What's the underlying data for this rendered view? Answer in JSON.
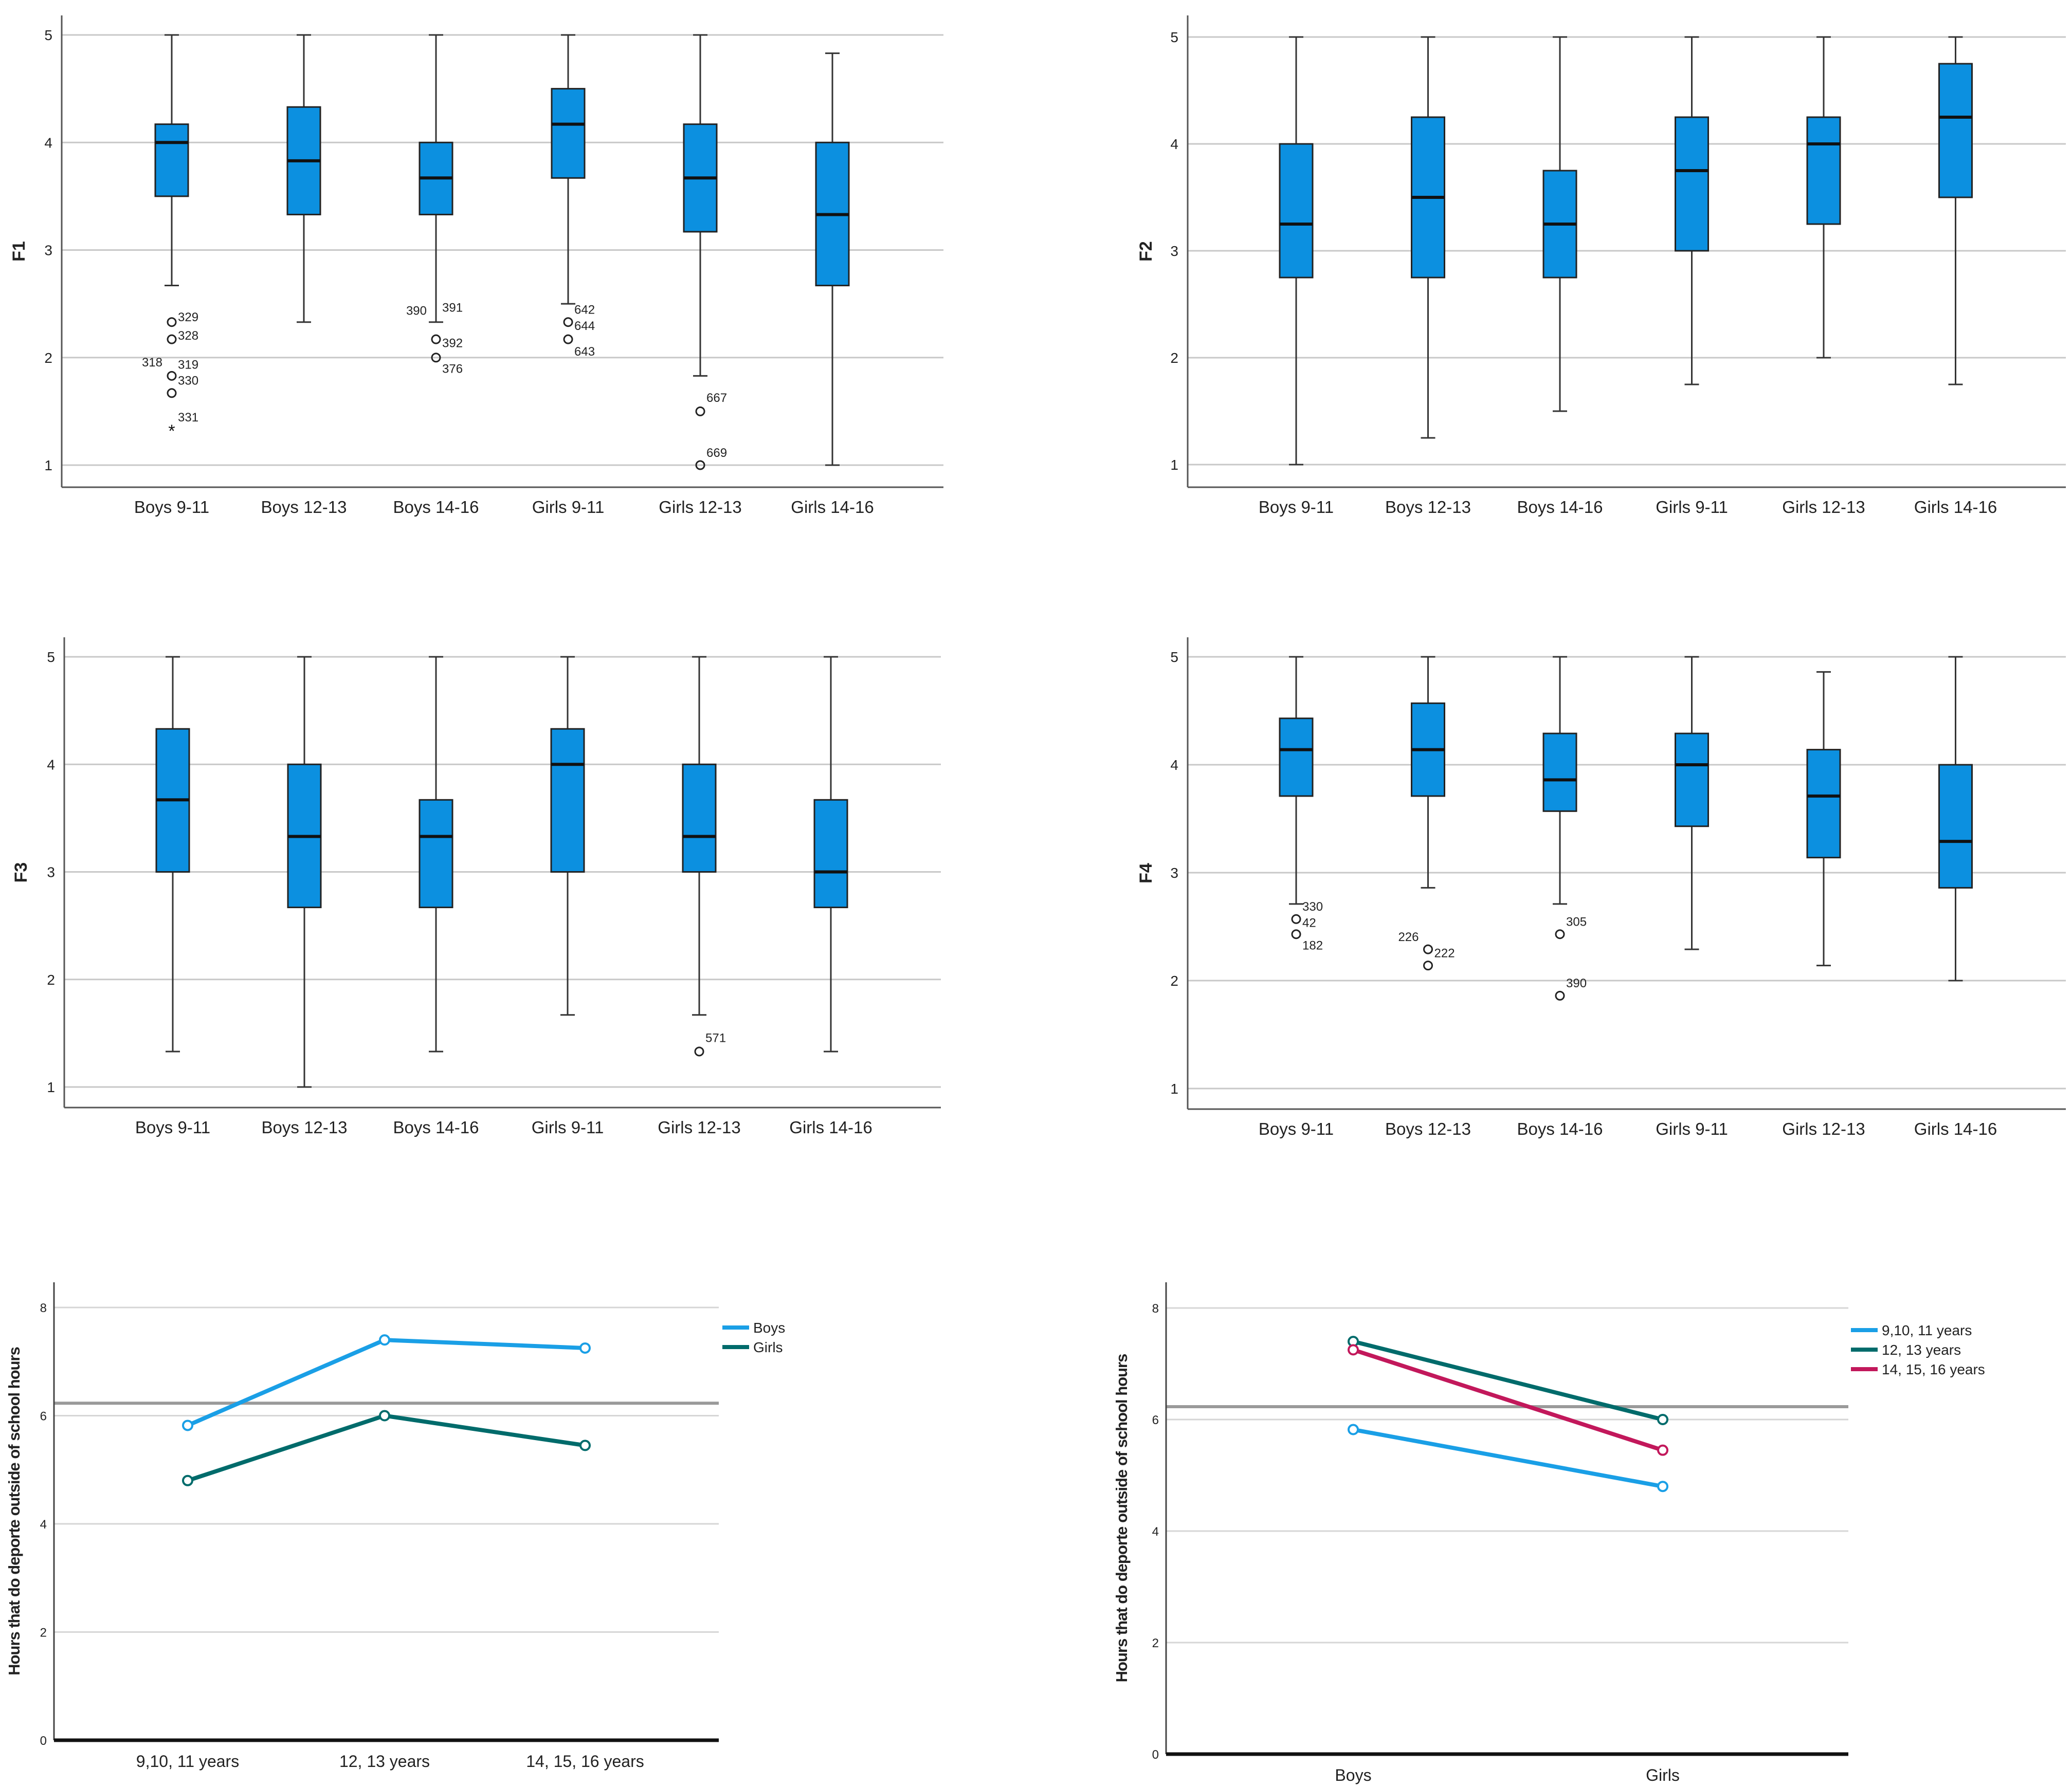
{
  "chart_data": [
    {
      "id": "f1",
      "type": "box",
      "ylabel": "F1",
      "ylim": [
        1,
        5
      ],
      "yticks": [
        1,
        2,
        3,
        4,
        5
      ],
      "categories": [
        "Boys 9-11",
        "Boys 12-13",
        "Boys 14-16",
        "Girls 9-11",
        "Girls 12-13",
        "Girls 14-16"
      ],
      "boxes": [
        {
          "whisker_low": 2.67,
          "q1": 3.5,
          "median": 4.0,
          "q3": 4.17,
          "whisker_high": 5.0
        },
        {
          "whisker_low": 2.33,
          "q1": 3.33,
          "median": 3.83,
          "q3": 4.33,
          "whisker_high": 5.0
        },
        {
          "whisker_low": 2.33,
          "q1": 3.33,
          "median": 3.67,
          "q3": 4.0,
          "whisker_high": 5.0
        },
        {
          "whisker_low": 2.5,
          "q1": 3.67,
          "median": 4.17,
          "q3": 4.5,
          "whisker_high": 5.0
        },
        {
          "whisker_low": 1.83,
          "q1": 3.17,
          "median": 3.67,
          "q3": 4.17,
          "whisker_high": 5.0
        },
        {
          "whisker_low": 1.0,
          "q1": 2.67,
          "median": 3.33,
          "q3": 4.0,
          "whisker_high": 4.83
        }
      ],
      "outliers": [
        {
          "box": 0,
          "y": 2.33,
          "marker": "circle",
          "labels": [
            {
              "text": "328",
              "side": "right",
              "dy": -0.12
            },
            {
              "text": "329",
              "side": "right",
              "dy": 0.05
            }
          ]
        },
        {
          "box": 0,
          "y": 2.17,
          "marker": "circle",
          "labels": []
        },
        {
          "box": 0,
          "y": 1.83,
          "marker": "circle",
          "labels": [
            {
              "text": "318",
              "side": "left",
              "dy": 0.13
            },
            {
              "text": "319",
              "side": "right",
              "dy": 0.11
            },
            {
              "text": "330",
              "side": "right",
              "dy": -0.04
            }
          ]
        },
        {
          "box": 0,
          "y": 1.67,
          "marker": "circle",
          "labels": []
        },
        {
          "box": 0,
          "y": 1.33,
          "marker": "star",
          "labels": [
            {
              "text": "331",
              "side": "right",
              "dy": 0.12
            }
          ]
        },
        {
          "box": 2,
          "y": 2.17,
          "marker": "circle",
          "labels": [
            {
              "text": "390",
              "side": "left",
              "dy": 0.27
            },
            {
              "text": "391",
              "side": "right",
              "dy": 0.3
            },
            {
              "text": "392",
              "side": "right",
              "dy": -0.03
            }
          ]
        },
        {
          "box": 2,
          "y": 2.0,
          "marker": "circle",
          "labels": [
            {
              "text": "376",
              "side": "right",
              "dy": -0.1
            }
          ]
        },
        {
          "box": 3,
          "y": 2.33,
          "marker": "circle",
          "labels": [
            {
              "text": "642",
              "side": "right",
              "dy": 0.12
            },
            {
              "text": "644",
              "side": "right",
              "dy": -0.03
            }
          ]
        },
        {
          "box": 3,
          "y": 2.17,
          "marker": "circle",
          "labels": [
            {
              "text": "643",
              "side": "right",
              "dy": -0.11
            }
          ]
        },
        {
          "box": 4,
          "y": 1.5,
          "marker": "circle",
          "labels": [
            {
              "text": "667",
              "side": "right",
              "dy": 0.13
            }
          ]
        },
        {
          "box": 4,
          "y": 1.0,
          "marker": "circle",
          "labels": [
            {
              "text": "669",
              "side": "right",
              "dy": 0.12
            }
          ]
        }
      ]
    },
    {
      "id": "f2",
      "type": "box",
      "ylabel": "F2",
      "ylim": [
        1,
        5
      ],
      "yticks": [
        1,
        2,
        3,
        4,
        5
      ],
      "categories": [
        "Boys 9-11",
        "Boys 12-13",
        "Boys 14-16",
        "Girls 9-11",
        "Girls 12-13",
        "Girls 14-16"
      ],
      "boxes": [
        {
          "whisker_low": 1.0,
          "q1": 2.75,
          "median": 3.25,
          "q3": 4.0,
          "whisker_high": 5.0
        },
        {
          "whisker_low": 1.25,
          "q1": 2.75,
          "median": 3.5,
          "q3": 4.25,
          "whisker_high": 5.0
        },
        {
          "whisker_low": 1.5,
          "q1": 2.75,
          "median": 3.25,
          "q3": 3.75,
          "whisker_high": 5.0
        },
        {
          "whisker_low": 1.75,
          "q1": 3.0,
          "median": 3.75,
          "q3": 4.25,
          "whisker_high": 5.0
        },
        {
          "whisker_low": 2.0,
          "q1": 3.25,
          "median": 4.0,
          "q3": 4.25,
          "whisker_high": 5.0
        },
        {
          "whisker_low": 1.75,
          "q1": 3.5,
          "median": 4.25,
          "q3": 4.75,
          "whisker_high": 5.0
        }
      ],
      "outliers": []
    },
    {
      "id": "f3",
      "type": "box",
      "ylabel": "F3",
      "ylim": [
        1,
        5
      ],
      "yticks": [
        1,
        2,
        3,
        4,
        5
      ],
      "categories": [
        "Boys 9-11",
        "Boys 12-13",
        "Boys 14-16",
        "Girls 9-11",
        "Girls 12-13",
        "Girls 14-16"
      ],
      "boxes": [
        {
          "whisker_low": 1.33,
          "q1": 3.0,
          "median": 3.67,
          "q3": 4.33,
          "whisker_high": 5.0
        },
        {
          "whisker_low": 1.0,
          "q1": 2.67,
          "median": 3.33,
          "q3": 4.0,
          "whisker_high": 5.0
        },
        {
          "whisker_low": 1.33,
          "q1": 2.67,
          "median": 3.33,
          "q3": 3.67,
          "whisker_high": 5.0
        },
        {
          "whisker_low": 1.67,
          "q1": 3.0,
          "median": 4.0,
          "q3": 4.33,
          "whisker_high": 5.0
        },
        {
          "whisker_low": 1.67,
          "q1": 3.0,
          "median": 3.33,
          "q3": 4.0,
          "whisker_high": 5.0
        },
        {
          "whisker_low": 1.33,
          "q1": 2.67,
          "median": 3.0,
          "q3": 3.67,
          "whisker_high": 5.0
        }
      ],
      "outliers": [
        {
          "box": 4,
          "y": 1.33,
          "marker": "circle",
          "labels": [
            {
              "text": "571",
              "side": "right",
              "dy": 0.13
            }
          ]
        }
      ]
    },
    {
      "id": "f4",
      "type": "box",
      "ylabel": "F4",
      "ylim": [
        1,
        5
      ],
      "yticks": [
        1,
        2,
        3,
        4,
        5
      ],
      "categories": [
        "Boys 9-11",
        "Boys 12-13",
        "Boys 14-16",
        "Girls 9-11",
        "Girls 12-13",
        "Girls 14-16"
      ],
      "boxes": [
        {
          "whisker_low": 2.71,
          "q1": 3.71,
          "median": 4.14,
          "q3": 4.43,
          "whisker_high": 5.0
        },
        {
          "whisker_low": 2.86,
          "q1": 3.71,
          "median": 4.14,
          "q3": 4.57,
          "whisker_high": 5.0
        },
        {
          "whisker_low": 2.71,
          "q1": 3.57,
          "median": 3.86,
          "q3": 4.29,
          "whisker_high": 5.0
        },
        {
          "whisker_low": 2.29,
          "q1": 3.43,
          "median": 4.0,
          "q3": 4.29,
          "whisker_high": 5.0
        },
        {
          "whisker_low": 2.14,
          "q1": 3.14,
          "median": 3.71,
          "q3": 4.14,
          "whisker_high": 4.86
        },
        {
          "whisker_low": 2.0,
          "q1": 2.86,
          "median": 3.29,
          "q3": 4.0,
          "whisker_high": 5.0
        }
      ],
      "outliers": [
        {
          "box": 0,
          "y": 2.57,
          "marker": "circle",
          "labels": [
            {
              "text": "330",
              "side": "right",
              "dy": 0.12
            },
            {
              "text": "42",
              "side": "right",
              "dy": -0.03
            }
          ]
        },
        {
          "box": 0,
          "y": 2.43,
          "marker": "circle",
          "labels": [
            {
              "text": "182",
              "side": "right",
              "dy": -0.1
            }
          ]
        },
        {
          "box": 1,
          "y": 2.29,
          "marker": "circle",
          "labels": [
            {
              "text": "226",
              "side": "left",
              "dy": 0.12
            },
            {
              "text": "222",
              "side": "right",
              "dy": -0.03
            }
          ]
        },
        {
          "box": 1,
          "y": 2.14,
          "marker": "circle",
          "labels": []
        },
        {
          "box": 2,
          "y": 2.43,
          "marker": "circle",
          "labels": [
            {
              "text": "305",
              "side": "right",
              "dy": 0.12
            }
          ]
        },
        {
          "box": 2,
          "y": 1.86,
          "marker": "circle",
          "labels": [
            {
              "text": "390",
              "side": "right",
              "dy": 0.12
            }
          ]
        }
      ]
    },
    {
      "id": "hours_age",
      "type": "line",
      "ylabel": "Hours that do deporte outside of school hours",
      "ylim": [
        0,
        8
      ],
      "yticks": [
        0,
        2,
        4,
        6,
        8
      ],
      "categories": [
        "9,10, 11 years",
        "12, 13 years",
        "14, 15, 16 years"
      ],
      "reference_line": 6.23,
      "series": [
        {
          "name": "Boys",
          "color": "#1a9fe6",
          "values": [
            5.82,
            7.4,
            7.25
          ]
        },
        {
          "name": "Girls",
          "color": "#006b6b",
          "values": [
            4.8,
            6.0,
            5.45
          ]
        }
      ]
    },
    {
      "id": "hours_sex",
      "type": "line",
      "ylabel": "Hours that do deporte outside of school hours",
      "ylim": [
        0,
        8
      ],
      "yticks": [
        0,
        2,
        4,
        6,
        8
      ],
      "categories": [
        "Boys",
        "Girls"
      ],
      "reference_line": 6.23,
      "series": [
        {
          "name": "9,10, 11 years",
          "color": "#1a9fe6",
          "values": [
            5.82,
            4.8
          ]
        },
        {
          "name": "12, 13 years",
          "color": "#006b6b",
          "values": [
            7.4,
            6.0
          ]
        },
        {
          "name": "14, 15, 16 years",
          "color": "#c2185b",
          "values": [
            7.25,
            5.45
          ]
        }
      ]
    }
  ]
}
